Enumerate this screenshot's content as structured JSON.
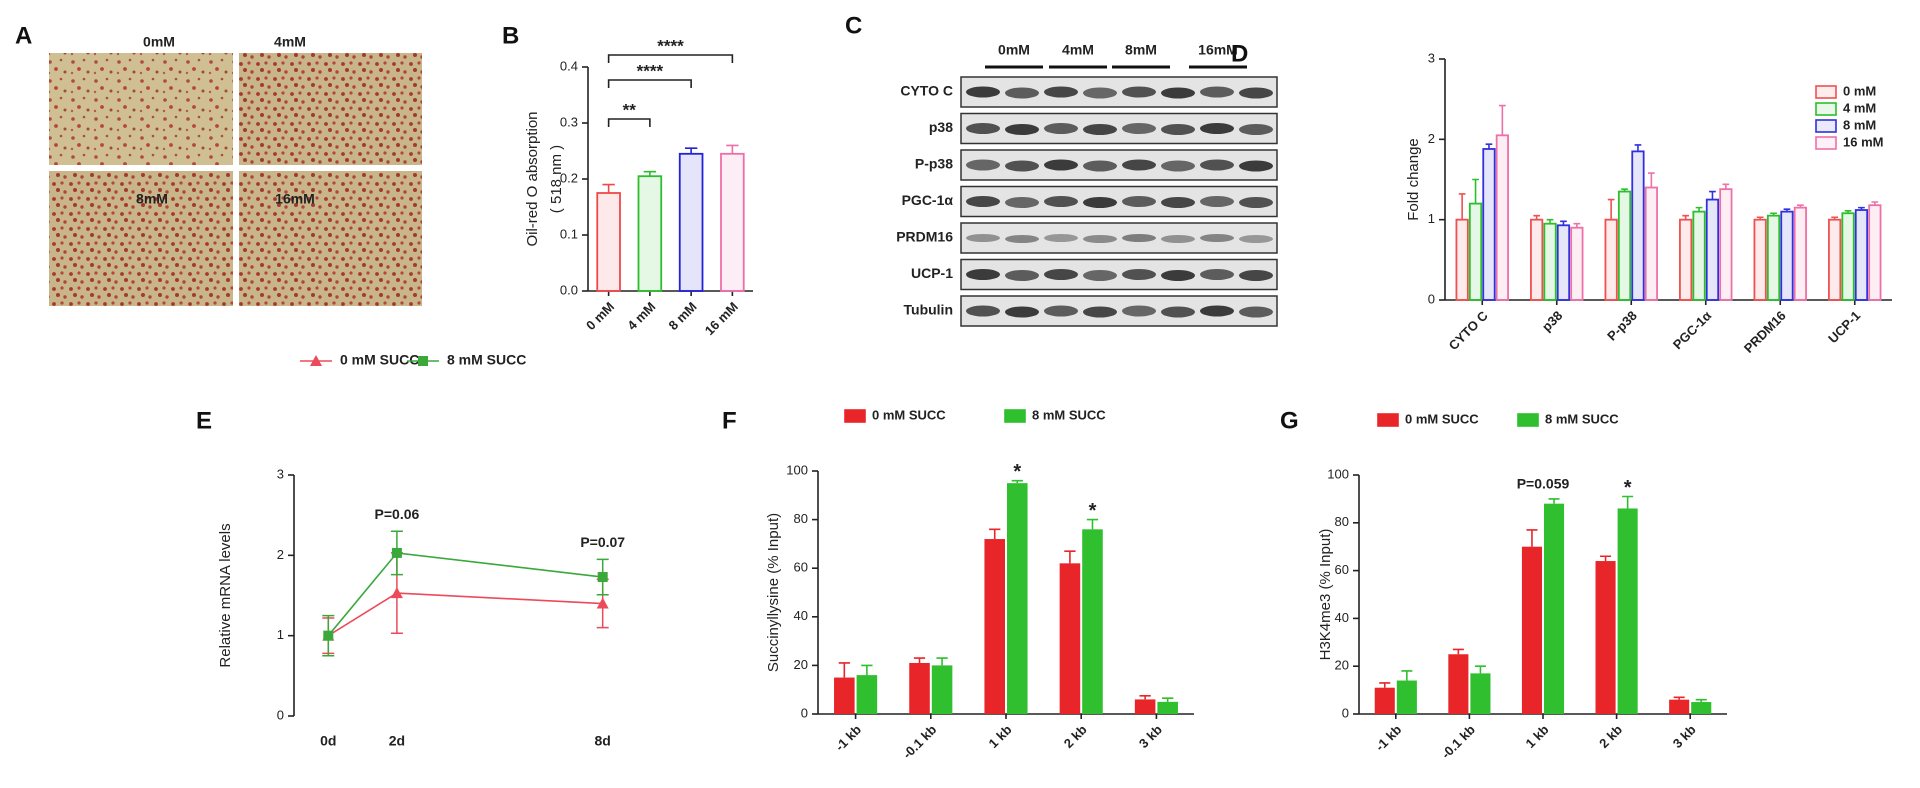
{
  "panel_a": {
    "letter": "A",
    "labels": [
      "0mM",
      "4mM",
      "8mM",
      "16mM"
    ]
  },
  "panel_c": {
    "letter": "C",
    "doses": [
      "0mM",
      "4mM",
      "8mM",
      "16mM"
    ],
    "proteins": [
      "CYTO C",
      "p38",
      "P-p38",
      "PGC-1α",
      "PRDM16",
      "UCP-1",
      "Tubulin"
    ]
  },
  "chart_data": [
    {
      "type": "bar",
      "panel": "B",
      "y_label": [
        "Oil-red O absorption",
        "( 518 nm )"
      ],
      "hollow": true,
      "categories": [
        "0 mM",
        "4 mM",
        "8 mM",
        "16 mM"
      ],
      "values": [
        0.175,
        0.205,
        0.245,
        0.245
      ],
      "errors": [
        0.015,
        0.008,
        0.01,
        0.015
      ],
      "colors": [
        "#f04848",
        "#2cbf2c",
        "#2222d8",
        "#ee6fa8"
      ],
      "ylim": [
        0,
        0.4
      ],
      "yticks": [
        {
          "value": 0,
          "label": "0.0"
        },
        0.1,
        0.2,
        0.3,
        0.4
      ],
      "significance": [
        "**",
        "****",
        "****"
      ]
    },
    {
      "type": "bar",
      "panel": "D",
      "y_label": [
        "Fold change"
      ],
      "hollow": true,
      "legend": "top-right",
      "categories": [
        "CYTO C",
        "p38",
        "P-p38",
        "PGC-1α",
        "PRDM16",
        "UCP-1"
      ],
      "series": [
        {
          "name": "0 mM",
          "color": "#f05050",
          "values": [
            1.0,
            1.0,
            1.0,
            1.0,
            1.0,
            1.0
          ],
          "errors": [
            0.32,
            0.05,
            0.25,
            0.05,
            0.03,
            0.03
          ]
        },
        {
          "name": "4 mM",
          "color": "#2cbf2c",
          "values": [
            1.2,
            0.95,
            1.35,
            1.1,
            1.05,
            1.08
          ],
          "errors": [
            0.3,
            0.05,
            0.03,
            0.05,
            0.03,
            0.03
          ]
        },
        {
          "name": "8 mM",
          "color": "#3030dd",
          "values": [
            1.88,
            0.93,
            1.85,
            1.25,
            1.1,
            1.12
          ],
          "errors": [
            0.06,
            0.05,
            0.08,
            0.1,
            0.03,
            0.03
          ]
        },
        {
          "name": "16 mM",
          "color": "#ee70a8",
          "values": [
            2.05,
            0.9,
            1.4,
            1.38,
            1.15,
            1.18
          ],
          "errors": [
            0.37,
            0.05,
            0.18,
            0.06,
            0.03,
            0.04
          ]
        }
      ],
      "ylim": [
        0,
        3
      ],
      "yticks": [
        0,
        1,
        2,
        3
      ]
    },
    {
      "type": "line",
      "panel": "E",
      "y_label": [
        "Relative mRNA levels"
      ],
      "legend": "top",
      "x": [
        0,
        2,
        8
      ],
      "xlim": [
        -1,
        9
      ],
      "xticks": [
        {
          "value": 0,
          "label": "0d"
        },
        {
          "value": 2,
          "label": "2d"
        },
        {
          "value": 8,
          "label": "8d"
        }
      ],
      "series": [
        {
          "name": "0 mM SUCC",
          "color": "#ec4a5a",
          "marker": "triangle",
          "values": [
            1.0,
            1.53,
            1.4
          ],
          "errors": [
            0.22,
            0.5,
            0.3
          ]
        },
        {
          "name": "8 mM SUCC",
          "color": "#3aa83a",
          "marker": "square",
          "values": [
            1.0,
            2.03,
            1.73
          ],
          "errors": [
            0.25,
            0.27,
            0.22
          ]
        }
      ],
      "ylim": [
        0,
        3
      ],
      "yticks": [
        0,
        1,
        2,
        3
      ],
      "annotations": [
        {
          "text": "P=0.06",
          "x": 2
        },
        {
          "text": "P=0.07",
          "x": 8
        }
      ]
    },
    {
      "type": "bar",
      "panel": "F",
      "y_label": [
        "Succinyllysine (% Input)"
      ],
      "legend": "top",
      "categories": [
        "-1 kb",
        "-0.1 kb",
        "1 kb",
        "2 kb",
        "3 kb"
      ],
      "series": [
        {
          "name": "0 mM SUCC",
          "color": "#e8262a",
          "values": [
            15,
            21,
            72,
            62,
            6
          ],
          "errors": [
            6,
            2,
            4,
            5,
            1.5
          ]
        },
        {
          "name": "8 mM SUCC",
          "color": "#2fbf2f",
          "values": [
            16,
            20,
            95,
            76,
            5
          ],
          "errors": [
            4,
            3,
            1,
            4,
            1.5
          ]
        }
      ],
      "ylim": [
        0,
        100
      ],
      "yticks": [
        0,
        20,
        40,
        60,
        80,
        100
      ],
      "annotations": [
        {
          "text": "*",
          "index": 2
        },
        {
          "text": "*",
          "index": 3
        }
      ]
    },
    {
      "type": "bar",
      "panel": "G",
      "y_label": [
        "H3K4me3 (% Input)"
      ],
      "legend": "top",
      "categories": [
        "-1 kb",
        "-0.1 kb",
        "1 kb",
        "2 kb",
        "3 kb"
      ],
      "series": [
        {
          "name": "0 mM SUCC",
          "color": "#e8262a",
          "values": [
            11,
            25,
            70,
            64,
            6
          ],
          "errors": [
            2,
            2,
            7,
            2,
            1
          ]
        },
        {
          "name": "8 mM SUCC",
          "color": "#2fbf2f",
          "values": [
            14,
            17,
            88,
            86,
            5
          ],
          "errors": [
            4,
            3,
            2,
            5,
            1
          ]
        }
      ],
      "ylim": [
        0,
        100
      ],
      "yticks": [
        0,
        20,
        40,
        60,
        80,
        100
      ],
      "annotations": [
        {
          "text": "P=0.059",
          "index": 2
        },
        {
          "text": "*",
          "index": 3
        }
      ]
    }
  ]
}
